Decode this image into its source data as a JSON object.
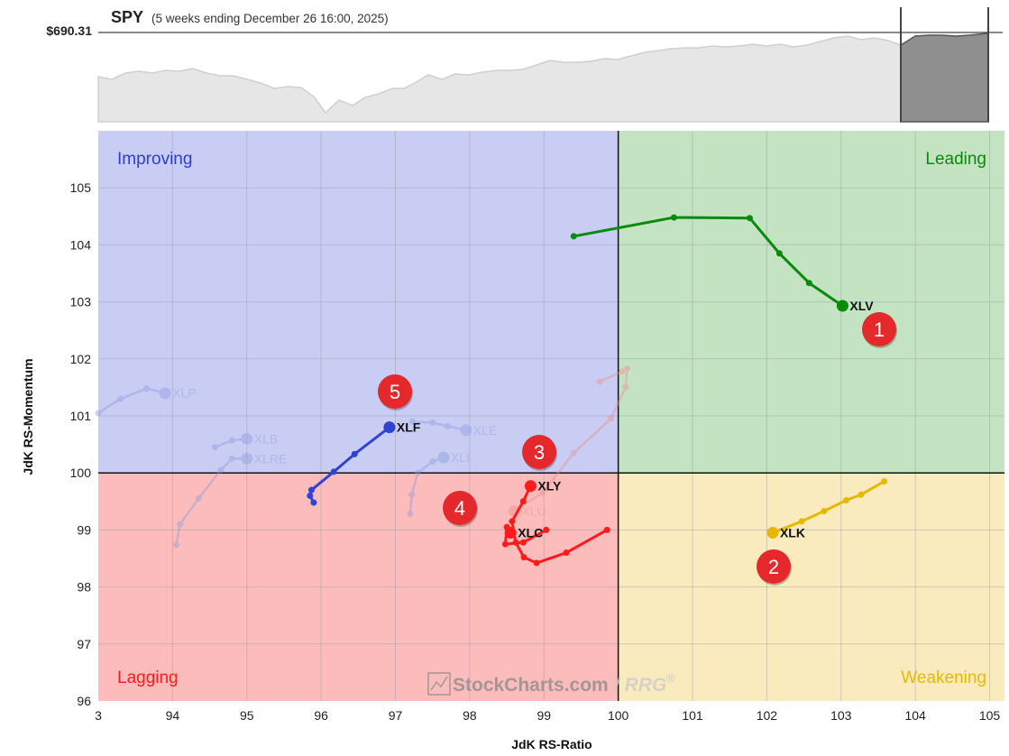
{
  "header": {
    "symbol": "SPY",
    "subtitle": "(5 weeks ending December 26 16:00, 2025)",
    "price": "$690.31"
  },
  "colors": {
    "improving": "#c9cdf3",
    "leading": "#c3e3c3",
    "lagging": "#fcbcbc",
    "weakening": "#f9ebbd",
    "improving_label": "#2b3fd1",
    "leading_label": "#0a8a0a",
    "lagging_label": "#ff1b1b",
    "weakening_label": "#e8b800",
    "badge": "#e4282b"
  },
  "quadrants": {
    "improving": "Improving",
    "leading": "Leading",
    "lagging": "Lagging",
    "weakening": "Weakening"
  },
  "watermark": {
    "text": "StockCharts.com",
    "suffix": "/ RRG",
    "reg": "®"
  },
  "badges": [
    "1",
    "2",
    "3",
    "4",
    "5"
  ],
  "chart_data": {
    "type": "scatter",
    "title": "SPY",
    "xlabel": "JdK RS-Ratio",
    "ylabel": "JdK RS-Momentum",
    "xlim": [
      93,
      105.2
    ],
    "ylim": [
      96,
      106
    ],
    "x_ticks": [
      "3",
      "94",
      "95",
      "96",
      "97",
      "98",
      "99",
      "100",
      "101",
      "102",
      "103",
      "104",
      "105"
    ],
    "y_ticks": [
      "96",
      "97",
      "98",
      "99",
      "100",
      "101",
      "102",
      "103",
      "104",
      "105"
    ],
    "grid": true,
    "center": [
      100,
      100
    ],
    "series": [
      {
        "name": "XLV",
        "color": "#0a8a0a",
        "highlight": true,
        "points": [
          [
            99.4,
            104.15
          ],
          [
            100.75,
            104.48
          ],
          [
            101.77,
            104.47
          ],
          [
            102.17,
            103.85
          ],
          [
            102.57,
            103.33
          ],
          [
            103.02,
            102.93
          ]
        ]
      },
      {
        "name": "XLK",
        "color": "#e8b800",
        "highlight": true,
        "points": [
          [
            103.58,
            99.85
          ],
          [
            103.27,
            99.62
          ],
          [
            103.07,
            99.52
          ],
          [
            102.77,
            99.33
          ],
          [
            102.47,
            99.15
          ],
          [
            102.08,
            98.95
          ]
        ]
      },
      {
        "name": "XLY",
        "color": "#ff1b1b",
        "highlight": true,
        "points": [
          [
            99.85,
            99.0
          ],
          [
            99.3,
            98.6
          ],
          [
            98.9,
            98.42
          ],
          [
            98.73,
            98.52
          ],
          [
            98.62,
            98.78
          ],
          [
            98.57,
            99.15
          ],
          [
            98.72,
            99.5
          ],
          [
            98.82,
            99.77
          ]
        ]
      },
      {
        "name": "XLC",
        "color": "#ff1b1b",
        "highlight": true,
        "points": [
          [
            99.03,
            99.0
          ],
          [
            98.72,
            98.78
          ],
          [
            98.48,
            98.75
          ],
          [
            98.5,
            99.05
          ],
          [
            98.55,
            98.95
          ]
        ]
      },
      {
        "name": "XLF",
        "color": "#2f44d0",
        "highlight": true,
        "points": [
          [
            95.9,
            99.48
          ],
          [
            95.85,
            99.6
          ],
          [
            95.87,
            99.7
          ],
          [
            96.17,
            100.02
          ],
          [
            96.45,
            100.33
          ],
          [
            96.92,
            100.8
          ]
        ]
      },
      {
        "name": "XLP",
        "color": "#8a9ae0",
        "highlight": false,
        "points": [
          [
            93.0,
            101.05
          ],
          [
            93.3,
            101.3
          ],
          [
            93.65,
            101.48
          ],
          [
            93.9,
            101.4
          ]
        ]
      },
      {
        "name": "XLB",
        "color": "#8a9ae0",
        "highlight": false,
        "points": [
          [
            94.57,
            100.45
          ],
          [
            94.8,
            100.57
          ],
          [
            95.0,
            100.6
          ]
        ]
      },
      {
        "name": "XLRE",
        "color": "#8a9ae0",
        "highlight": false,
        "points": [
          [
            94.05,
            98.74
          ],
          [
            94.1,
            99.1
          ],
          [
            94.35,
            99.55
          ],
          [
            94.65,
            100.05
          ],
          [
            94.8,
            100.25
          ],
          [
            95.0,
            100.25
          ]
        ]
      },
      {
        "name": "XLE",
        "color": "#8a9ae0",
        "highlight": false,
        "points": [
          [
            97.23,
            100.9
          ],
          [
            97.5,
            100.88
          ],
          [
            97.7,
            100.82
          ],
          [
            97.95,
            100.75
          ]
        ]
      },
      {
        "name": "XLI",
        "color": "#8a9ae0",
        "highlight": false,
        "points": [
          [
            97.2,
            99.28
          ],
          [
            97.22,
            99.62
          ],
          [
            97.3,
            100.0
          ],
          [
            97.5,
            100.2
          ],
          [
            97.65,
            100.27
          ]
        ]
      },
      {
        "name": "XLU",
        "color": "#f08a8a",
        "highlight": false,
        "points": [
          [
            99.75,
            101.6
          ],
          [
            100.05,
            101.78
          ],
          [
            100.12,
            101.83
          ],
          [
            100.1,
            101.5
          ],
          [
            99.9,
            100.95
          ],
          [
            99.4,
            100.35
          ],
          [
            98.98,
            99.65
          ],
          [
            98.6,
            99.33
          ]
        ]
      }
    ]
  }
}
